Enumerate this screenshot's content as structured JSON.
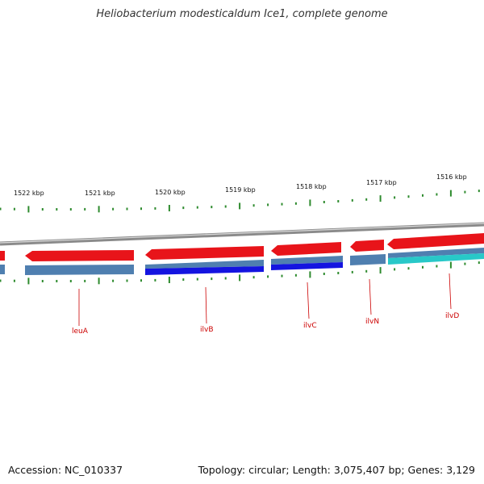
{
  "title": "Heliobacterium modesticaldum Ice1, complete genome",
  "accession_text": "Accession: NC_010337",
  "summary_text": "Topology: circular; Length: 3,075,407 bp; Genes: 3,129",
  "colors": {
    "backbone": "#8a8a8a",
    "forward_cds": "#e8141a",
    "steel_track": "#4f7fb0",
    "blue_track": "#1414e0",
    "cyan_track": "#28c8c8",
    "ticks": "#2e8b2e",
    "gene_label": "#cc0000"
  },
  "scale_labels": [
    "1522 kbp",
    "1521 kbp",
    "1520 kbp",
    "1519 kbp",
    "1518 kbp",
    "1517 kbp",
    "1516 kbp"
  ],
  "genes": [
    {
      "name": "leuA"
    },
    {
      "name": "ilvB"
    },
    {
      "name": "ilvC"
    },
    {
      "name": "ilvN"
    },
    {
      "name": "ilvD"
    }
  ]
}
